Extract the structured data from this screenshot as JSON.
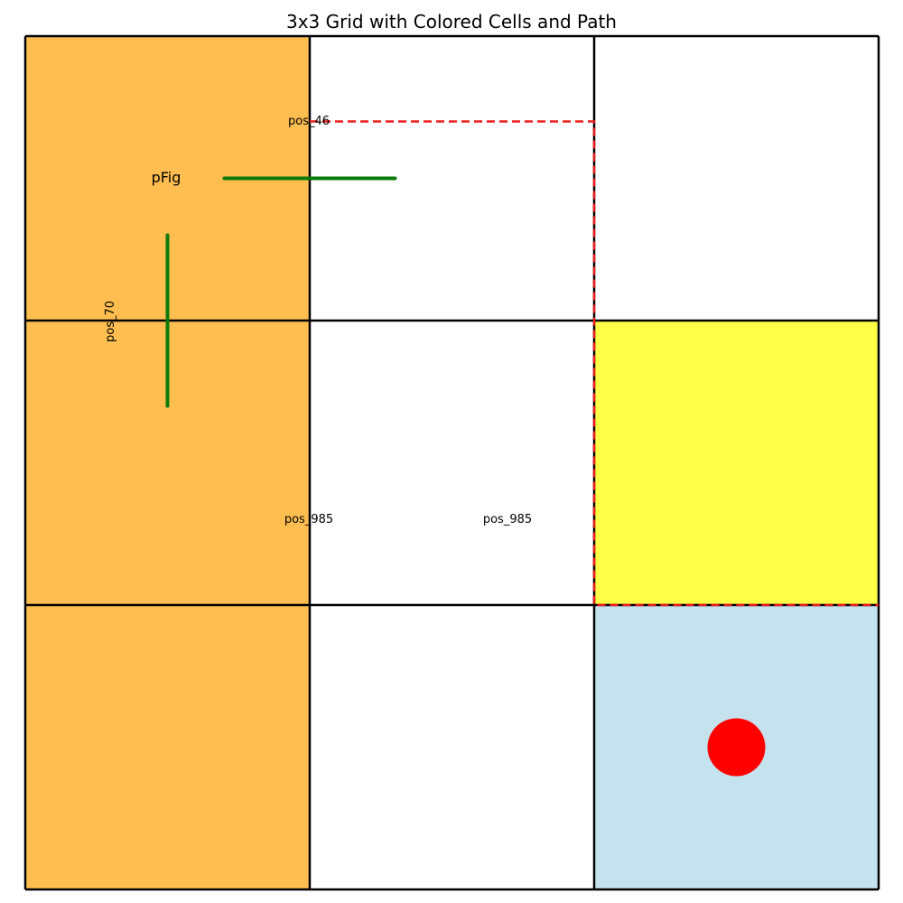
{
  "title": "3x3 Grid with Colored Cells and Path",
  "grid": {
    "rows": 3,
    "cols": 3,
    "cells": [
      [
        "#ffbe4f",
        "#ffffff",
        "#ffffff"
      ],
      [
        "#ffbe4f",
        "#ffffff",
        "#ffff47"
      ],
      [
        "#ffbe4f",
        "#ffffff",
        "#c5e3ee"
      ]
    ],
    "line_color": "#000000"
  },
  "path": {
    "color": "#ee1c1c",
    "style": "dashed",
    "points": [
      [
        1.0,
        0.3
      ],
      [
        2.0,
        0.3
      ],
      [
        2.0,
        2.0
      ],
      [
        3.0,
        2.0
      ]
    ]
  },
  "green_marks": {
    "color": "#0a7a0a",
    "segments": [
      {
        "from": [
          0.7,
          0.5
        ],
        "to": [
          1.3,
          0.5
        ]
      },
      {
        "from": [
          0.5,
          0.7
        ],
        "to": [
          0.5,
          1.3
        ]
      }
    ]
  },
  "marker": {
    "color": "#ff0000",
    "cell": [
      2,
      2
    ],
    "shape": "circle"
  },
  "labels": {
    "pos_46": "pos_46",
    "pfig": "pFig",
    "pos_70": "pos_70",
    "pos_985_a": "pos_985",
    "pos_985_b": "pos_985"
  }
}
